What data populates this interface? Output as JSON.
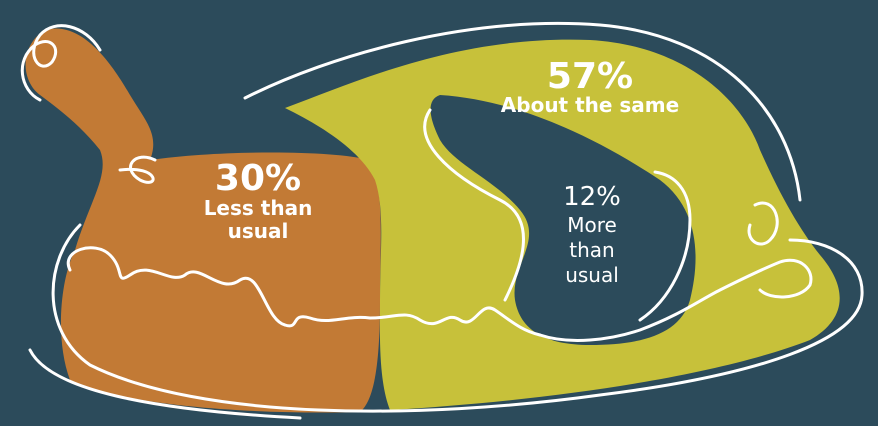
{
  "chart_data": {
    "type": "pie",
    "title": "",
    "slices": [
      {
        "label": "Less than usual",
        "value": 30,
        "display": "30%",
        "color": "#c27a35"
      },
      {
        "label": "About the same",
        "value": 57,
        "display": "57%",
        "color": "#c7c13a"
      },
      {
        "label": "More than usual",
        "value": 12,
        "display": "12%",
        "color": "#2c4b5b"
      }
    ]
  },
  "labels": {
    "less": {
      "pct": "30%",
      "line1": "Less than",
      "line2": "usual"
    },
    "same": {
      "pct": "57%",
      "line1": "About the same"
    },
    "more": {
      "pct": "12%",
      "line1": "More",
      "line2": "than",
      "line3": "usual"
    }
  },
  "colors": {
    "background": "#2c4b5b",
    "outline": "#ffffff"
  }
}
